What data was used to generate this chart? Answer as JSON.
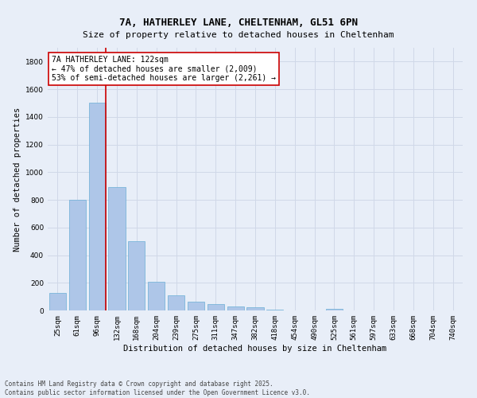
{
  "title1": "7A, HATHERLEY LANE, CHELTENHAM, GL51 6PN",
  "title2": "Size of property relative to detached houses in Cheltenham",
  "xlabel": "Distribution of detached houses by size in Cheltenham",
  "ylabel": "Number of detached properties",
  "categories": [
    "25sqm",
    "61sqm",
    "96sqm",
    "132sqm",
    "168sqm",
    "204sqm",
    "239sqm",
    "275sqm",
    "311sqm",
    "347sqm",
    "382sqm",
    "418sqm",
    "454sqm",
    "490sqm",
    "525sqm",
    "561sqm",
    "597sqm",
    "633sqm",
    "668sqm",
    "704sqm",
    "740sqm"
  ],
  "values": [
    125,
    800,
    1500,
    890,
    500,
    210,
    110,
    65,
    45,
    30,
    25,
    5,
    2,
    1,
    10,
    1,
    1,
    0,
    0,
    0,
    0
  ],
  "bar_color": "#aec6e8",
  "bar_edge_color": "#6aaed6",
  "vline_color": "#cc0000",
  "annotation_text": "7A HATHERLEY LANE: 122sqm\n← 47% of detached houses are smaller (2,009)\n53% of semi-detached houses are larger (2,261) →",
  "annotation_box_color": "#ffffff",
  "annotation_box_edge": "#cc0000",
  "ylim": [
    0,
    1900
  ],
  "yticks": [
    0,
    200,
    400,
    600,
    800,
    1000,
    1200,
    1400,
    1600,
    1800
  ],
  "grid_color": "#d0d8e8",
  "background_color": "#e8eef8",
  "footer": "Contains HM Land Registry data © Crown copyright and database right 2025.\nContains public sector information licensed under the Open Government Licence v3.0.",
  "title1_fontsize": 9,
  "title2_fontsize": 8,
  "xlabel_fontsize": 7.5,
  "ylabel_fontsize": 7.5,
  "tick_fontsize": 6.5,
  "annotation_fontsize": 7,
  "footer_fontsize": 5.5
}
